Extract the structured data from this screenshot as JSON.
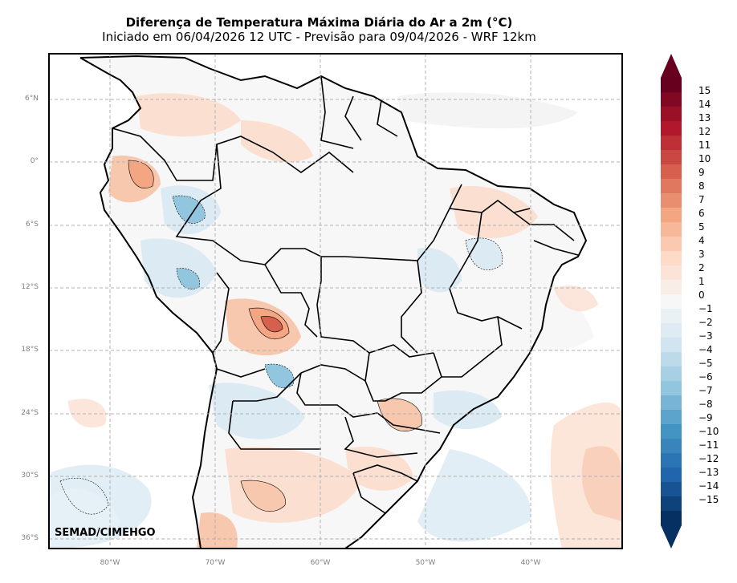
{
  "title": "Diferença de Temperatura Máxima Diária do Ar a 2m (°C)",
  "subtitle": "Iniciado em 06/04/2026 12 UTC - Previsão para 09/04/2026 - WRF 12km",
  "watermark": "SEMAD/CIMEHGO",
  "lat_labels": [
    "6°N",
    "0°",
    "6°S",
    "12°S",
    "18°S",
    "24°S",
    "30°S",
    "36°S"
  ],
  "lon_labels": [
    "80°W",
    "70°W",
    "60°W",
    "50°W",
    "40°W"
  ],
  "colorbar": {
    "ticks": [
      "15",
      "14",
      "13",
      "12",
      "11",
      "10",
      "9",
      "8",
      "7",
      "6",
      "5",
      "4",
      "3",
      "2",
      "1",
      "0",
      "−1",
      "−2",
      "−3",
      "−4",
      "−5",
      "−6",
      "−7",
      "−8",
      "−9",
      "−10",
      "−11",
      "−12",
      "−13",
      "−14",
      "−15"
    ],
    "max_color": "#67001f",
    "min_color": "#053061"
  },
  "colors": {
    "warm_light": "#fbe0d2",
    "warm_mid": "#f4a582",
    "warm_strong": "#d6604d",
    "cool_light": "#dbeaf3",
    "cool_mid": "#92c5de",
    "cool_strong": "#4393c3",
    "grid": "#b0b0b0",
    "border": "#000000"
  }
}
